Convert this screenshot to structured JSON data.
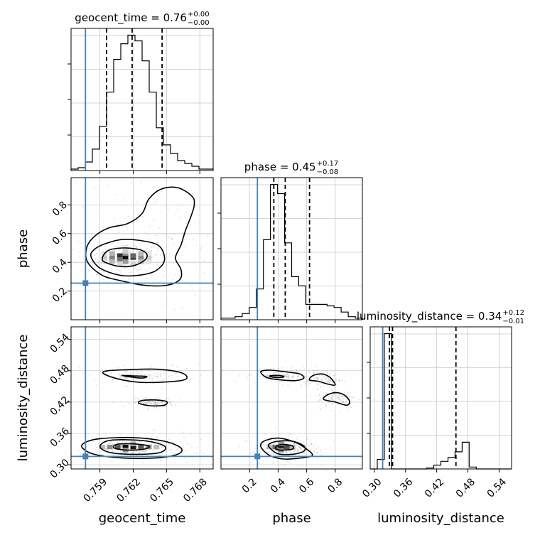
{
  "colors": {
    "truth": "#4682b4",
    "line": "#000000",
    "grid": "#c8c8c8",
    "scatter": "#808080"
  },
  "chart_data": {
    "type": "corner",
    "parameters": [
      "geocent_time",
      "phase",
      "luminosity_distance"
    ],
    "truths": {
      "geocent_time": 0.7577,
      "phase": 0.255,
      "luminosity_distance": 0.316
    },
    "grid": true,
    "titles": [
      {
        "param": "geocent_time",
        "text": "geocent_time = 0.76",
        "sup": "+0.00",
        "sub": "−0.00"
      },
      {
        "param": "phase",
        "text": "phase = 0.45",
        "sup": "+0.17",
        "sub": "−0.08"
      },
      {
        "param": "luminosity_distance",
        "text": "luminosity_distance = 0.34",
        "sup": "+0.12",
        "sub": "−0.01"
      }
    ],
    "axes": {
      "geocent_time": {
        "label": "geocent_time",
        "range": [
          0.7564,
          0.7692
        ],
        "ticks": [
          0.759,
          0.762,
          0.765,
          0.768
        ],
        "tick_labels": [
          "0.759",
          "0.762",
          "0.765",
          "0.768"
        ]
      },
      "phase": {
        "label": "phase",
        "range": [
          0.0,
          0.99
        ],
        "ticks": [
          0.2,
          0.4,
          0.6,
          0.8
        ],
        "tick_labels": [
          "0.2",
          "0.4",
          "0.6",
          "0.8"
        ]
      },
      "luminosity_distance": {
        "label": "luminosity_distance",
        "range": [
          0.292,
          0.564
        ],
        "ticks": [
          0.3,
          0.36,
          0.42,
          0.48,
          0.54
        ],
        "tick_labels": [
          "0.30",
          "0.36",
          "0.42",
          "0.48",
          "0.54"
        ]
      }
    },
    "histograms": [
      {
        "param": "geocent_time",
        "bin_edges": [
          0.7564,
          0.75704,
          0.75768,
          0.75832,
          0.75896,
          0.7596,
          0.76024,
          0.76088,
          0.76152,
          0.76216,
          0.7628,
          0.76344,
          0.76408,
          0.76472,
          0.76536,
          0.766,
          0.76664,
          0.76728,
          0.76792,
          0.76856,
          0.7692
        ],
        "counts": [
          1,
          2,
          6,
          15,
          31,
          55,
          78,
          89,
          95,
          91,
          77,
          55,
          30,
          18,
          12,
          7,
          5,
          3,
          1,
          1
        ],
        "quantiles": [
          0.7596,
          0.7619,
          0.7646
        ]
      },
      {
        "param": "phase",
        "bin_edges": [
          0.0,
          0.0495,
          0.099,
          0.1485,
          0.198,
          0.2475,
          0.297,
          0.3465,
          0.396,
          0.4455,
          0.495,
          0.5445,
          0.594,
          0.6435,
          0.693,
          0.7425,
          0.792,
          0.8415,
          0.891,
          0.9405,
          0.99
        ],
        "counts": [
          1,
          1,
          2,
          4,
          8,
          20,
          52,
          88,
          82,
          50,
          28,
          22,
          10,
          10,
          10,
          9,
          8,
          5,
          2,
          1
        ],
        "quantiles": [
          0.37,
          0.45,
          0.62
        ]
      },
      {
        "param": "luminosity_distance",
        "bin_edges": [
          0.292,
          0.3056,
          0.3192,
          0.3328,
          0.3464,
          0.36,
          0.3736,
          0.3872,
          0.4008,
          0.4144,
          0.428,
          0.4416,
          0.4552,
          0.4688,
          0.4824,
          0.496,
          0.5096,
          0.5232,
          0.5368,
          0.5504,
          0.564
        ],
        "counts": [
          0,
          10,
          142,
          0,
          0,
          0,
          0,
          0,
          1,
          4,
          8,
          12,
          18,
          28,
          2,
          0,
          0,
          0,
          0,
          0
        ],
        "quantiles": [
          0.329,
          0.335,
          0.457
        ]
      }
    ],
    "contours_2d": [
      {
        "x": "geocent_time",
        "y": "phase",
        "levels": [
          [
            [
              0.7592,
              0.42
            ],
            [
              0.7598,
              0.39
            ],
            [
              0.761,
              0.37
            ],
            [
              0.7622,
              0.38
            ],
            [
              0.7631,
              0.42
            ],
            [
              0.7632,
              0.46
            ],
            [
              0.7625,
              0.49
            ],
            [
              0.761,
              0.5
            ],
            [
              0.7597,
              0.48
            ]
          ],
          [
            [
              0.7582,
              0.44
            ],
            [
              0.759,
              0.36
            ],
            [
              0.7608,
              0.31
            ],
            [
              0.7625,
              0.31
            ],
            [
              0.764,
              0.34
            ],
            [
              0.7648,
              0.41
            ],
            [
              0.7645,
              0.5
            ],
            [
              0.7635,
              0.54
            ],
            [
              0.7612,
              0.56
            ],
            [
              0.7595,
              0.53
            ],
            [
              0.7585,
              0.49
            ]
          ],
          [
            [
              0.7579,
              0.4
            ],
            [
              0.7592,
              0.31
            ],
            [
              0.761,
              0.27
            ],
            [
              0.763,
              0.24
            ],
            [
              0.765,
              0.24
            ],
            [
              0.7662,
              0.28
            ],
            [
              0.7663,
              0.35
            ],
            [
              0.7658,
              0.43
            ],
            [
              0.7663,
              0.52
            ],
            [
              0.7667,
              0.62
            ],
            [
              0.7672,
              0.72
            ],
            [
              0.7675,
              0.8
            ],
            [
              0.7673,
              0.86
            ],
            [
              0.766,
              0.92
            ],
            [
              0.7645,
              0.91
            ],
            [
              0.7634,
              0.84
            ],
            [
              0.7628,
              0.74
            ],
            [
              0.7615,
              0.67
            ],
            [
              0.7598,
              0.64
            ],
            [
              0.7585,
              0.58
            ],
            [
              0.7578,
              0.5
            ]
          ]
        ],
        "density_cells": [
          [
            0.7613,
            0.433,
            0.95
          ],
          [
            0.7608,
            0.447,
            0.8
          ],
          [
            0.762,
            0.433,
            0.75
          ],
          [
            0.7608,
            0.419,
            0.55
          ],
          [
            0.762,
            0.447,
            0.6
          ],
          [
            0.7601,
            0.433,
            0.5
          ],
          [
            0.7627,
            0.433,
            0.45
          ],
          [
            0.7613,
            0.461,
            0.45
          ],
          [
            0.7613,
            0.405,
            0.4
          ],
          [
            0.7601,
            0.461,
            0.3
          ],
          [
            0.7627,
            0.461,
            0.28
          ],
          [
            0.7601,
            0.405,
            0.28
          ],
          [
            0.7627,
            0.405,
            0.25
          ],
          [
            0.7594,
            0.433,
            0.22
          ],
          [
            0.7634,
            0.433,
            0.2
          ],
          [
            0.7613,
            0.475,
            0.2
          ],
          [
            0.762,
            0.391,
            0.18
          ],
          [
            0.7608,
            0.391,
            0.16
          ],
          [
            0.7634,
            0.405,
            0.12
          ],
          [
            0.7594,
            0.405,
            0.12
          ],
          [
            0.7594,
            0.461,
            0.12
          ],
          [
            0.7634,
            0.461,
            0.1
          ]
        ]
      },
      {
        "x": "geocent_time",
        "y": "luminosity_distance",
        "levels": [
          [
            [
              0.761,
              0.471
            ],
            [
              0.7618,
              0.468
            ],
            [
              0.7628,
              0.466
            ],
            [
              0.7632,
              0.469
            ],
            [
              0.762,
              0.47
            ]
          ],
          [
            [
              0.7603,
              0.332
            ],
            [
              0.7615,
              0.328
            ],
            [
              0.763,
              0.33
            ],
            [
              0.7634,
              0.336
            ],
            [
              0.762,
              0.34
            ],
            [
              0.7605,
              0.339
            ]
          ],
          [
            [
              0.759,
              0.335
            ],
            [
              0.76,
              0.323
            ],
            [
              0.7625,
              0.32
            ],
            [
              0.7645,
              0.324
            ],
            [
              0.7648,
              0.336
            ],
            [
              0.763,
              0.346
            ],
            [
              0.76,
              0.347
            ]
          ],
          [
            [
              0.7574,
              0.333
            ],
            [
              0.7585,
              0.32
            ],
            [
              0.761,
              0.313
            ],
            [
              0.764,
              0.313
            ],
            [
              0.766,
              0.32
            ],
            [
              0.7663,
              0.332
            ],
            [
              0.7648,
              0.345
            ],
            [
              0.762,
              0.352
            ],
            [
              0.759,
              0.35
            ],
            [
              0.7577,
              0.343
            ]
          ],
          [
            [
              0.7593,
              0.475
            ],
            [
              0.7605,
              0.465
            ],
            [
              0.7625,
              0.458
            ],
            [
              0.7645,
              0.458
            ],
            [
              0.7665,
              0.462
            ],
            [
              0.7668,
              0.47
            ],
            [
              0.766,
              0.478
            ],
            [
              0.764,
              0.483
            ],
            [
              0.7615,
              0.482
            ],
            [
              0.7597,
              0.48
            ]
          ],
          [
            [
              0.7625,
              0.418
            ],
            [
              0.7635,
              0.413
            ],
            [
              0.7648,
              0.414
            ],
            [
              0.765,
              0.421
            ],
            [
              0.764,
              0.424
            ],
            [
              0.7628,
              0.423
            ]
          ]
        ],
        "density_cells": [
          [
            0.7613,
            0.334,
            0.95
          ],
          [
            0.762,
            0.334,
            0.9
          ],
          [
            0.7606,
            0.334,
            0.65
          ],
          [
            0.7627,
            0.334,
            0.65
          ],
          [
            0.7599,
            0.334,
            0.45
          ],
          [
            0.7634,
            0.334,
            0.45
          ],
          [
            0.7613,
            0.328,
            0.4
          ],
          [
            0.762,
            0.34,
            0.35
          ],
          [
            0.7592,
            0.334,
            0.28
          ],
          [
            0.7641,
            0.334,
            0.25
          ]
        ]
      },
      {
        "x": "phase",
        "y": "luminosity_distance",
        "levels": [
          [
            [
              0.34,
              0.47
            ],
            [
              0.38,
              0.467
            ],
            [
              0.44,
              0.468
            ],
            [
              0.41,
              0.471
            ]
          ],
          [
            [
              0.38,
              0.331
            ],
            [
              0.42,
              0.328
            ],
            [
              0.5,
              0.33
            ],
            [
              0.5,
              0.336
            ],
            [
              0.44,
              0.339
            ],
            [
              0.4,
              0.337
            ]
          ],
          [
            [
              0.34,
              0.333
            ],
            [
              0.4,
              0.321
            ],
            [
              0.5,
              0.32
            ],
            [
              0.58,
              0.326
            ],
            [
              0.58,
              0.336
            ],
            [
              0.5,
              0.345
            ],
            [
              0.4,
              0.345
            ],
            [
              0.34,
              0.34
            ]
          ],
          [
            [
              0.28,
              0.476
            ],
            [
              0.32,
              0.467
            ],
            [
              0.4,
              0.463
            ],
            [
              0.52,
              0.461
            ],
            [
              0.58,
              0.466
            ],
            [
              0.55,
              0.474
            ],
            [
              0.45,
              0.478
            ],
            [
              0.35,
              0.481
            ],
            [
              0.29,
              0.48
            ]
          ],
          [
            [
              0.62,
              0.462
            ],
            [
              0.68,
              0.46
            ],
            [
              0.74,
              0.455
            ],
            [
              0.8,
              0.453
            ],
            [
              0.76,
              0.468
            ],
            [
              0.7,
              0.474
            ],
            [
              0.64,
              0.47
            ]
          ],
          [
            [
              0.72,
              0.425
            ],
            [
              0.8,
              0.42
            ],
            [
              0.88,
              0.414
            ],
            [
              0.9,
              0.422
            ],
            [
              0.86,
              0.434
            ],
            [
              0.8,
              0.438
            ],
            [
              0.74,
              0.433
            ]
          ],
          [
            [
              0.28,
              0.334
            ],
            [
              0.34,
              0.318
            ],
            [
              0.44,
              0.311
            ],
            [
              0.56,
              0.313
            ],
            [
              0.64,
              0.318
            ],
            [
              0.6,
              0.33
            ],
            [
              0.52,
              0.343
            ],
            [
              0.4,
              0.351
            ],
            [
              0.3,
              0.345
            ]
          ]
        ],
        "density_cells": [
          [
            0.42,
            0.334,
            0.95
          ],
          [
            0.46,
            0.334,
            0.7
          ],
          [
            0.38,
            0.334,
            0.55
          ],
          [
            0.42,
            0.328,
            0.45
          ],
          [
            0.42,
            0.34,
            0.4
          ],
          [
            0.5,
            0.334,
            0.3
          ],
          [
            0.34,
            0.334,
            0.25
          ]
        ]
      }
    ]
  }
}
